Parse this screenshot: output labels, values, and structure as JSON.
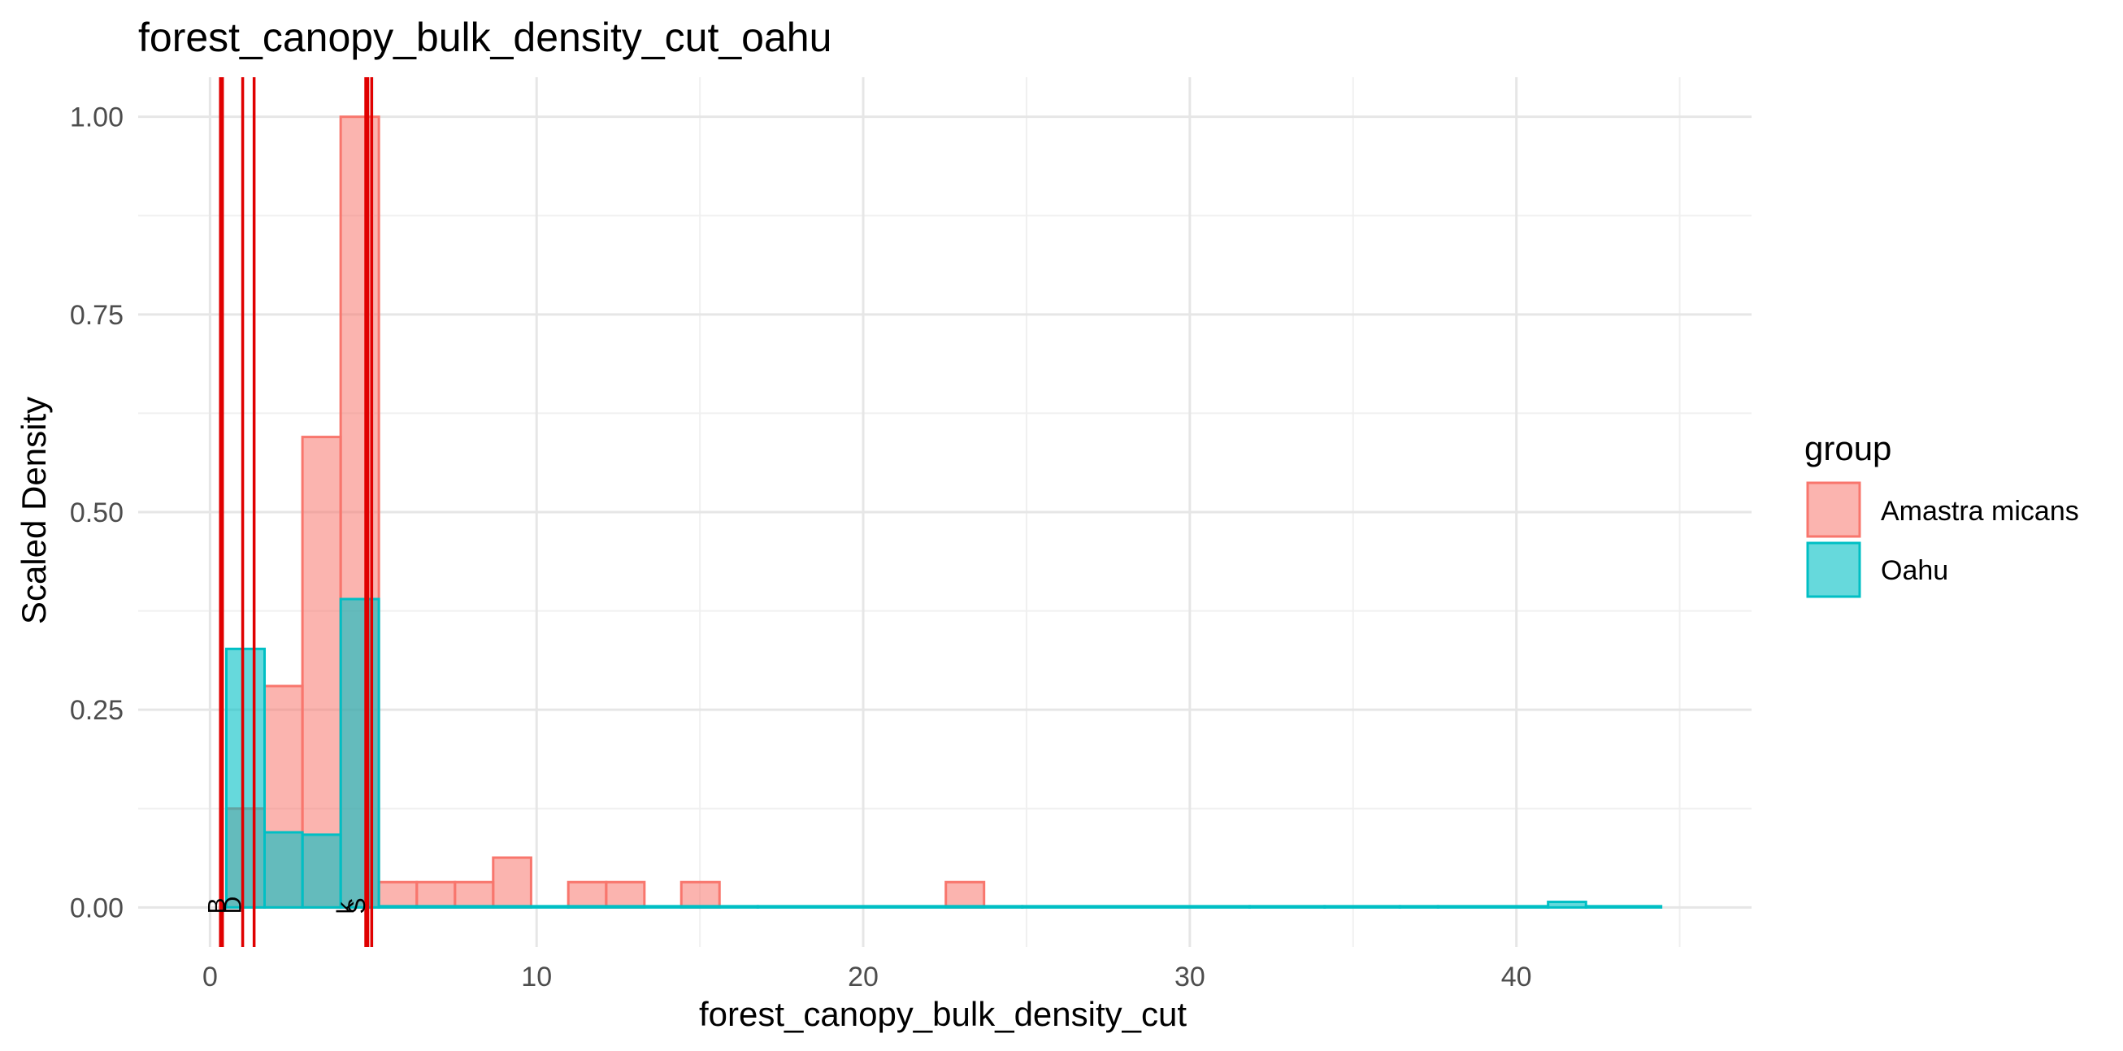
{
  "chart_data": {
    "type": "histogram",
    "title": "forest_canopy_bulk_density_cut_oahu",
    "xlabel": "forest_canopy_bulk_density_cut",
    "ylabel": "Scaled Density",
    "xlim": [
      -2.2,
      47.2
    ],
    "ylim": [
      -0.05,
      1.05
    ],
    "x_ticks": [
      0,
      10,
      20,
      30,
      40
    ],
    "y_ticks": [
      0.0,
      0.25,
      0.5,
      0.75,
      1.0
    ],
    "x_tick_labels": [
      "0",
      "10",
      "20",
      "30",
      "40"
    ],
    "y_tick_labels": [
      "0.00",
      "0.25",
      "0.50",
      "0.75",
      "1.00"
    ],
    "grid": true,
    "legend": {
      "title": "group",
      "placement": "right",
      "entries": [
        {
          "label": "Amastra micans",
          "fill": "#F8766D",
          "stroke": "#F8766D"
        },
        {
          "label": "Oahu",
          "fill": "#00BFC4",
          "stroke": "#00BFC4"
        }
      ]
    },
    "series": [
      {
        "name": "Amastra micans",
        "color": "#F8766D",
        "bins": [
          {
            "x0": 0.5,
            "x1": 1.67,
            "y": 0.125
          },
          {
            "x0": 1.67,
            "x1": 2.83,
            "y": 0.28
          },
          {
            "x0": 2.83,
            "x1": 4.0,
            "y": 0.595
          },
          {
            "x0": 4.0,
            "x1": 5.17,
            "y": 1.0
          },
          {
            "x0": 5.17,
            "x1": 6.33,
            "y": 0.032
          },
          {
            "x0": 6.33,
            "x1": 7.5,
            "y": 0.032
          },
          {
            "x0": 7.5,
            "x1": 8.67,
            "y": 0.032
          },
          {
            "x0": 8.67,
            "x1": 9.83,
            "y": 0.063
          },
          {
            "x0": 10.97,
            "x1": 12.13,
            "y": 0.032
          },
          {
            "x0": 12.13,
            "x1": 13.3,
            "y": 0.032
          },
          {
            "x0": 14.43,
            "x1": 15.6,
            "y": 0.032
          },
          {
            "x0": 22.53,
            "x1": 23.7,
            "y": 0.032
          }
        ]
      },
      {
        "name": "Oahu",
        "color": "#00BFC4",
        "bins": [
          {
            "x0": 0.5,
            "x1": 1.67,
            "y": 0.327
          },
          {
            "x0": 1.67,
            "x1": 2.83,
            "y": 0.095
          },
          {
            "x0": 2.83,
            "x1": 4.0,
            "y": 0.092
          },
          {
            "x0": 4.0,
            "x1": 5.17,
            "y": 0.39
          },
          {
            "x0": 5.17,
            "x1": 6.33,
            "y": 0.001
          },
          {
            "x0": 6.33,
            "x1": 10.97,
            "y": 0.0005
          },
          {
            "x0": 10.97,
            "x1": 16.77,
            "y": 0.0008
          },
          {
            "x0": 16.77,
            "x1": 24.87,
            "y": 0.0005
          },
          {
            "x0": 24.87,
            "x1": 31.83,
            "y": 0.0015
          },
          {
            "x0": 31.83,
            "x1": 34.13,
            "y": 0.0005
          },
          {
            "x0": 34.13,
            "x1": 36.43,
            "y": 0.0015
          },
          {
            "x0": 36.43,
            "x1": 37.6,
            "y": 0.0005
          },
          {
            "x0": 37.6,
            "x1": 40.97,
            "y": 0.0015
          },
          {
            "x0": 40.97,
            "x1": 42.13,
            "y": 0.007
          },
          {
            "x0": 42.13,
            "x1": 44.43,
            "y": 0.0008
          }
        ]
      }
    ],
    "reference_lines": [
      {
        "x": 0.35,
        "label": "B",
        "weight": "thick"
      },
      {
        "x": 1.0,
        "label": "D",
        "weight": "thin"
      },
      {
        "x": 1.35,
        "label": "",
        "weight": "thin"
      },
      {
        "x": 4.8,
        "label": "",
        "weight": "thick"
      },
      {
        "x": 4.95,
        "label": "",
        "weight": "thin"
      }
    ],
    "line_labels": [
      {
        "x": 0.25,
        "text": "B"
      },
      {
        "x": 0.75,
        "text": "D"
      },
      {
        "x": 4.2,
        "text": "k"
      },
      {
        "x": 4.55,
        "text": "S"
      }
    ],
    "reference_line_color": "#E00000"
  }
}
